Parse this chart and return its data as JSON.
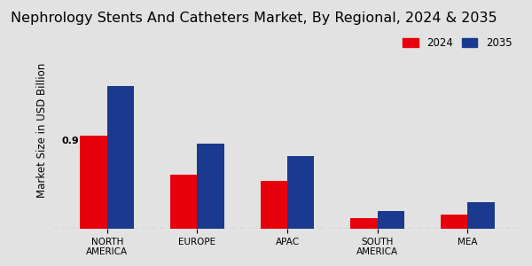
{
  "title": "Nephrology Stents And Catheters Market, By Regional, 2024 & 2035",
  "ylabel": "Market Size in USD Billion",
  "categories": [
    "NORTH\nAMERICA",
    "EUROPE",
    "APAC",
    "SOUTH\nAMERICA",
    "MEA"
  ],
  "values_2024": [
    0.9,
    0.52,
    0.46,
    0.1,
    0.14
  ],
  "values_2035": [
    1.38,
    0.82,
    0.7,
    0.17,
    0.26
  ],
  "color_2024": "#e8000d",
  "color_2035": "#1a3a8f",
  "annotation_text": "0.9",
  "annotation_bar": 0,
  "background_color": "#e2e2e2",
  "legend_2024": "2024",
  "legend_2035": "2035",
  "bar_width": 0.3,
  "ylim": [
    0,
    1.9
  ],
  "title_fontsize": 11.5,
  "axis_label_fontsize": 8.5,
  "tick_fontsize": 7.5,
  "legend_fontsize": 8.5,
  "bottom_bar_color": "#cc0000",
  "bottom_bar_height": 0.028
}
